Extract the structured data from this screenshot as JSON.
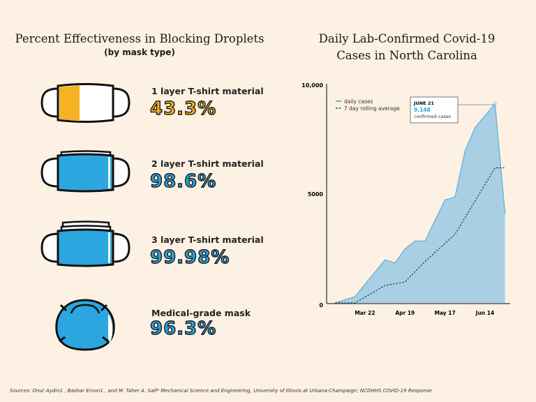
{
  "left": {
    "title": "Percent Effectiveness in Blocking Droplets",
    "subtitle": "(by mask type)",
    "masks": [
      {
        "label": "1 layer T-shirt material",
        "value": "43.3%",
        "color": "#f5b323",
        "icon": "cloth-mask-1-layer"
      },
      {
        "label": "2 layer T-shirt material",
        "value": "98.6%",
        "color": "#2ba6df",
        "icon": "cloth-mask-2-layer"
      },
      {
        "label": "3 layer T-shirt material",
        "value": "99.98%",
        "color": "#2ba6df",
        "icon": "cloth-mask-3-layer"
      },
      {
        "label": "Medical-grade mask",
        "value": "96.3%",
        "color": "#2ba6df",
        "icon": "medical-mask"
      }
    ]
  },
  "chart_data": {
    "type": "area",
    "title_line1": "Daily Lab-Confirmed Covid-19",
    "title_line2": "Cases in North Carolina",
    "ylim": [
      0,
      10000
    ],
    "yticks": [
      "0",
      "5000",
      "10,000"
    ],
    "xticks": [
      "Mar 22",
      "Apr 19",
      "May 17",
      "Jun 14"
    ],
    "legend": {
      "placement": "top-left",
      "items": [
        "daily cases",
        "7 day rolling average"
      ]
    },
    "series": [
      {
        "name": "daily cases",
        "color": "#5fb3da",
        "fill": "#a9cfe4",
        "x": [
          "Mar 1",
          "Mar 15",
          "Apr 5",
          "Apr 12",
          "Apr 19",
          "Apr 26",
          "May 3",
          "May 17",
          "May 24",
          "May 31",
          "Jun 7",
          "Jun 21",
          "Jun 28"
        ],
        "y": [
          0,
          290,
          1980,
          1830,
          2480,
          2840,
          2840,
          4730,
          4860,
          6980,
          8050,
          9148,
          4090
        ]
      },
      {
        "name": "7 day rolling average",
        "color": "#1a1a1a",
        "dashed": true,
        "x": [
          "Mar 1",
          "Mar 15",
          "Apr 5",
          "Apr 19",
          "May 3",
          "May 24",
          "Jun 21",
          "Jun 28"
        ],
        "y": [
          0,
          0,
          800,
          960,
          1900,
          3150,
          6200,
          6200
        ]
      }
    ],
    "annotation": {
      "date": "JUNE 21",
      "value": "9,148",
      "text": "confirmed cases",
      "value_color": "#2ba6df"
    }
  },
  "sources": "Sources: Onur Aydin1 , Bashar Emon1 , and M. Taher A. Saif* Mechanical Science and Engineering, University of Illinois at Urbana-Champaign; NCDHHS COVID-19 Response"
}
